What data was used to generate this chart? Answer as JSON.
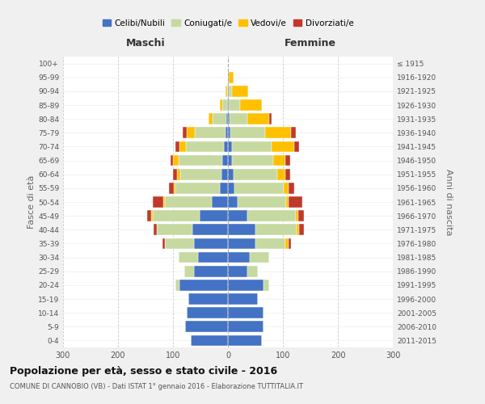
{
  "age_groups": [
    "0-4",
    "5-9",
    "10-14",
    "15-19",
    "20-24",
    "25-29",
    "30-34",
    "35-39",
    "40-44",
    "45-49",
    "50-54",
    "55-59",
    "60-64",
    "65-69",
    "70-74",
    "75-79",
    "80-84",
    "85-89",
    "90-94",
    "95-99",
    "100+"
  ],
  "birth_years": [
    "2011-2015",
    "2006-2010",
    "2001-2005",
    "1996-2000",
    "1991-1995",
    "1986-1990",
    "1981-1985",
    "1976-1980",
    "1971-1975",
    "1966-1970",
    "1961-1965",
    "1956-1960",
    "1951-1955",
    "1946-1950",
    "1941-1945",
    "1936-1940",
    "1931-1935",
    "1926-1930",
    "1921-1925",
    "1916-1920",
    "≤ 1915"
  ],
  "maschi": {
    "celibi": [
      68,
      78,
      75,
      72,
      88,
      62,
      55,
      62,
      65,
      52,
      30,
      15,
      12,
      10,
      8,
      5,
      3,
      2,
      0,
      0,
      0
    ],
    "coniugati": [
      0,
      0,
      0,
      0,
      8,
      18,
      35,
      52,
      65,
      85,
      85,
      80,
      75,
      80,
      68,
      55,
      25,
      8,
      2,
      0,
      0
    ],
    "vedovi": [
      0,
      0,
      0,
      0,
      0,
      0,
      0,
      0,
      0,
      2,
      2,
      3,
      5,
      10,
      12,
      15,
      8,
      5,
      2,
      0,
      0
    ],
    "divorziati": [
      0,
      0,
      0,
      0,
      0,
      0,
      0,
      5,
      5,
      8,
      20,
      10,
      8,
      5,
      8,
      8,
      0,
      0,
      0,
      0,
      0
    ]
  },
  "femmine": {
    "nubili": [
      62,
      65,
      65,
      55,
      65,
      35,
      40,
      50,
      50,
      35,
      18,
      12,
      10,
      8,
      8,
      5,
      3,
      2,
      2,
      2,
      0
    ],
    "coniugate": [
      0,
      0,
      0,
      0,
      10,
      20,
      35,
      55,
      75,
      88,
      88,
      90,
      80,
      75,
      72,
      62,
      32,
      20,
      5,
      0,
      0
    ],
    "vedove": [
      0,
      0,
      0,
      0,
      0,
      0,
      0,
      5,
      5,
      5,
      5,
      8,
      15,
      22,
      40,
      48,
      40,
      40,
      30,
      8,
      0
    ],
    "divorziate": [
      0,
      0,
      0,
      0,
      0,
      0,
      0,
      5,
      8,
      10,
      25,
      10,
      8,
      8,
      10,
      8,
      5,
      0,
      0,
      0,
      0
    ]
  },
  "colors": {
    "celibi": "#4472c4",
    "coniugati": "#c6d9a0",
    "vedovi": "#ffc000",
    "divorziati": "#c0392b"
  },
  "xlim": 300,
  "title": "Popolazione per età, sesso e stato civile - 2016",
  "subtitle": "COMUNE DI CANNOBIO (VB) - Dati ISTAT 1° gennaio 2016 - Elaborazione TUTTITALIA.IT",
  "ylabel_left": "Fasce di età",
  "ylabel_right": "Anni di nascita",
  "xlabel_left": "Maschi",
  "xlabel_right": "Femmine",
  "legend_labels": [
    "Celibi/Nubili",
    "Coniugati/e",
    "Vedovi/e",
    "Divorziati/e"
  ],
  "background_color": "#f0f0f0",
  "plot_bg_color": "#ffffff"
}
